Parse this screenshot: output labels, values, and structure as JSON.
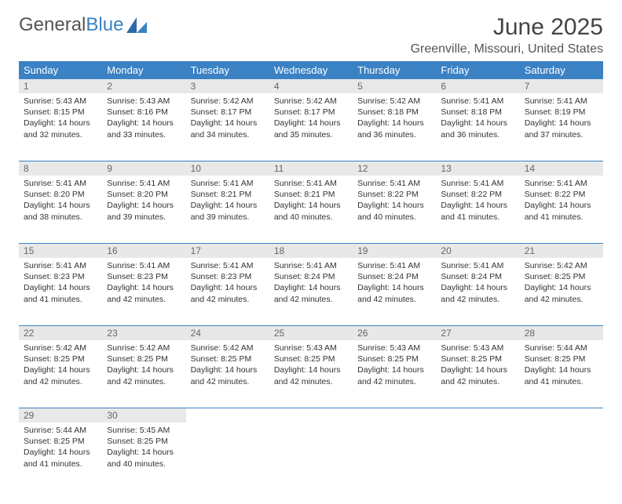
{
  "logo": {
    "text1": "General",
    "text2": "Blue"
  },
  "title": "June 2025",
  "location": "Greenville, Missouri, United States",
  "colors": {
    "header_bg": "#3b82c4",
    "header_text": "#ffffff",
    "daynum_bg": "#e8e8e8",
    "daynum_text": "#666666",
    "border": "#3b82c4",
    "body_text": "#333333",
    "page_bg": "#ffffff"
  },
  "weekdays": [
    "Sunday",
    "Monday",
    "Tuesday",
    "Wednesday",
    "Thursday",
    "Friday",
    "Saturday"
  ],
  "weeks": [
    [
      {
        "day": "1",
        "sunrise": "Sunrise: 5:43 AM",
        "sunset": "Sunset: 8:15 PM",
        "daylight1": "Daylight: 14 hours",
        "daylight2": "and 32 minutes."
      },
      {
        "day": "2",
        "sunrise": "Sunrise: 5:43 AM",
        "sunset": "Sunset: 8:16 PM",
        "daylight1": "Daylight: 14 hours",
        "daylight2": "and 33 minutes."
      },
      {
        "day": "3",
        "sunrise": "Sunrise: 5:42 AM",
        "sunset": "Sunset: 8:17 PM",
        "daylight1": "Daylight: 14 hours",
        "daylight2": "and 34 minutes."
      },
      {
        "day": "4",
        "sunrise": "Sunrise: 5:42 AM",
        "sunset": "Sunset: 8:17 PM",
        "daylight1": "Daylight: 14 hours",
        "daylight2": "and 35 minutes."
      },
      {
        "day": "5",
        "sunrise": "Sunrise: 5:42 AM",
        "sunset": "Sunset: 8:18 PM",
        "daylight1": "Daylight: 14 hours",
        "daylight2": "and 36 minutes."
      },
      {
        "day": "6",
        "sunrise": "Sunrise: 5:41 AM",
        "sunset": "Sunset: 8:18 PM",
        "daylight1": "Daylight: 14 hours",
        "daylight2": "and 36 minutes."
      },
      {
        "day": "7",
        "sunrise": "Sunrise: 5:41 AM",
        "sunset": "Sunset: 8:19 PM",
        "daylight1": "Daylight: 14 hours",
        "daylight2": "and 37 minutes."
      }
    ],
    [
      {
        "day": "8",
        "sunrise": "Sunrise: 5:41 AM",
        "sunset": "Sunset: 8:20 PM",
        "daylight1": "Daylight: 14 hours",
        "daylight2": "and 38 minutes."
      },
      {
        "day": "9",
        "sunrise": "Sunrise: 5:41 AM",
        "sunset": "Sunset: 8:20 PM",
        "daylight1": "Daylight: 14 hours",
        "daylight2": "and 39 minutes."
      },
      {
        "day": "10",
        "sunrise": "Sunrise: 5:41 AM",
        "sunset": "Sunset: 8:21 PM",
        "daylight1": "Daylight: 14 hours",
        "daylight2": "and 39 minutes."
      },
      {
        "day": "11",
        "sunrise": "Sunrise: 5:41 AM",
        "sunset": "Sunset: 8:21 PM",
        "daylight1": "Daylight: 14 hours",
        "daylight2": "and 40 minutes."
      },
      {
        "day": "12",
        "sunrise": "Sunrise: 5:41 AM",
        "sunset": "Sunset: 8:22 PM",
        "daylight1": "Daylight: 14 hours",
        "daylight2": "and 40 minutes."
      },
      {
        "day": "13",
        "sunrise": "Sunrise: 5:41 AM",
        "sunset": "Sunset: 8:22 PM",
        "daylight1": "Daylight: 14 hours",
        "daylight2": "and 41 minutes."
      },
      {
        "day": "14",
        "sunrise": "Sunrise: 5:41 AM",
        "sunset": "Sunset: 8:22 PM",
        "daylight1": "Daylight: 14 hours",
        "daylight2": "and 41 minutes."
      }
    ],
    [
      {
        "day": "15",
        "sunrise": "Sunrise: 5:41 AM",
        "sunset": "Sunset: 8:23 PM",
        "daylight1": "Daylight: 14 hours",
        "daylight2": "and 41 minutes."
      },
      {
        "day": "16",
        "sunrise": "Sunrise: 5:41 AM",
        "sunset": "Sunset: 8:23 PM",
        "daylight1": "Daylight: 14 hours",
        "daylight2": "and 42 minutes."
      },
      {
        "day": "17",
        "sunrise": "Sunrise: 5:41 AM",
        "sunset": "Sunset: 8:23 PM",
        "daylight1": "Daylight: 14 hours",
        "daylight2": "and 42 minutes."
      },
      {
        "day": "18",
        "sunrise": "Sunrise: 5:41 AM",
        "sunset": "Sunset: 8:24 PM",
        "daylight1": "Daylight: 14 hours",
        "daylight2": "and 42 minutes."
      },
      {
        "day": "19",
        "sunrise": "Sunrise: 5:41 AM",
        "sunset": "Sunset: 8:24 PM",
        "daylight1": "Daylight: 14 hours",
        "daylight2": "and 42 minutes."
      },
      {
        "day": "20",
        "sunrise": "Sunrise: 5:41 AM",
        "sunset": "Sunset: 8:24 PM",
        "daylight1": "Daylight: 14 hours",
        "daylight2": "and 42 minutes."
      },
      {
        "day": "21",
        "sunrise": "Sunrise: 5:42 AM",
        "sunset": "Sunset: 8:25 PM",
        "daylight1": "Daylight: 14 hours",
        "daylight2": "and 42 minutes."
      }
    ],
    [
      {
        "day": "22",
        "sunrise": "Sunrise: 5:42 AM",
        "sunset": "Sunset: 8:25 PM",
        "daylight1": "Daylight: 14 hours",
        "daylight2": "and 42 minutes."
      },
      {
        "day": "23",
        "sunrise": "Sunrise: 5:42 AM",
        "sunset": "Sunset: 8:25 PM",
        "daylight1": "Daylight: 14 hours",
        "daylight2": "and 42 minutes."
      },
      {
        "day": "24",
        "sunrise": "Sunrise: 5:42 AM",
        "sunset": "Sunset: 8:25 PM",
        "daylight1": "Daylight: 14 hours",
        "daylight2": "and 42 minutes."
      },
      {
        "day": "25",
        "sunrise": "Sunrise: 5:43 AM",
        "sunset": "Sunset: 8:25 PM",
        "daylight1": "Daylight: 14 hours",
        "daylight2": "and 42 minutes."
      },
      {
        "day": "26",
        "sunrise": "Sunrise: 5:43 AM",
        "sunset": "Sunset: 8:25 PM",
        "daylight1": "Daylight: 14 hours",
        "daylight2": "and 42 minutes."
      },
      {
        "day": "27",
        "sunrise": "Sunrise: 5:43 AM",
        "sunset": "Sunset: 8:25 PM",
        "daylight1": "Daylight: 14 hours",
        "daylight2": "and 42 minutes."
      },
      {
        "day": "28",
        "sunrise": "Sunrise: 5:44 AM",
        "sunset": "Sunset: 8:25 PM",
        "daylight1": "Daylight: 14 hours",
        "daylight2": "and 41 minutes."
      }
    ],
    [
      {
        "day": "29",
        "sunrise": "Sunrise: 5:44 AM",
        "sunset": "Sunset: 8:25 PM",
        "daylight1": "Daylight: 14 hours",
        "daylight2": "and 41 minutes."
      },
      {
        "day": "30",
        "sunrise": "Sunrise: 5:45 AM",
        "sunset": "Sunset: 8:25 PM",
        "daylight1": "Daylight: 14 hours",
        "daylight2": "and 40 minutes."
      },
      null,
      null,
      null,
      null,
      null
    ]
  ]
}
